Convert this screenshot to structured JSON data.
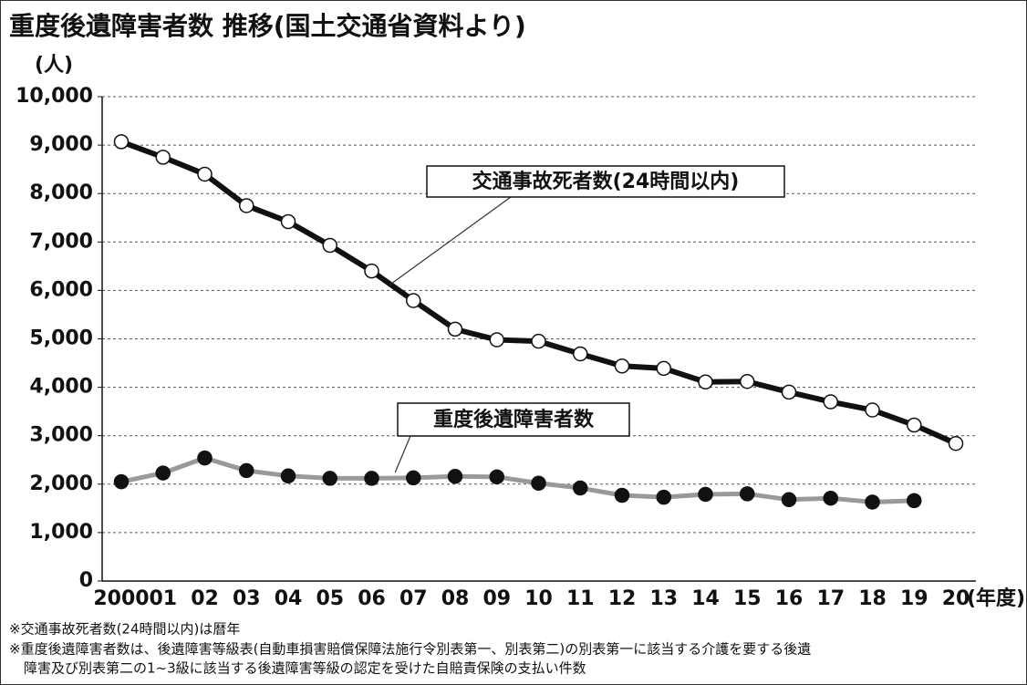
{
  "chart_data": {
    "type": "line",
    "title": "重度後遺障害者数 推移(国土交通省資料より)",
    "y_unit": "(人)",
    "x_unit": "(年度)",
    "categories": [
      "2000",
      "01",
      "02",
      "03",
      "04",
      "05",
      "06",
      "07",
      "08",
      "09",
      "10",
      "11",
      "12",
      "13",
      "14",
      "15",
      "16",
      "17",
      "18",
      "19",
      "20"
    ],
    "series": [
      {
        "name": "交通事故死者数(24時間以内)",
        "color": "#111111",
        "marker_fill": "#ffffff",
        "values": [
          9070,
          8750,
          8400,
          7750,
          7420,
          6930,
          6400,
          5790,
          5200,
          4980,
          4950,
          4690,
          4440,
          4390,
          4110,
          4120,
          3900,
          3700,
          3530,
          3220,
          2840
        ]
      },
      {
        "name": "重度後遺障害者数",
        "color": "#999999",
        "marker_fill": "#111111",
        "values": [
          2050,
          2230,
          2540,
          2280,
          2170,
          2120,
          2120,
          2130,
          2160,
          2150,
          2020,
          1920,
          1770,
          1730,
          1790,
          1800,
          1680,
          1710,
          1630,
          1660,
          null
        ]
      }
    ],
    "ylim": [
      0,
      10000
    ],
    "yticks": [
      0,
      {
        "value": 1000,
        "label": "1,000"
      },
      {
        "value": 2000,
        "label": "2,000"
      },
      {
        "value": 3000,
        "label": "3,000"
      },
      {
        "value": 4000,
        "label": "4,000"
      },
      {
        "value": 5000,
        "label": "5,000"
      },
      {
        "value": 6000,
        "label": "6,000"
      },
      {
        "value": 7000,
        "label": "7,000"
      },
      {
        "value": 8000,
        "label": "8,000"
      },
      {
        "value": 9000,
        "label": "9,000"
      },
      {
        "value": 10000,
        "label": "10,000"
      }
    ],
    "grid": true,
    "notes": [
      "※交通事故死者数(24時間以内)は暦年",
      "※重度後遺障害者数は、後遺障害等級表(自動車損害賠償保障法施行令別表第一、別表第二)の別表第一に該当する介護を要する後遺",
      "障害及び別表第二の1~3級に該当する後遺障害等級の認定を受けた自賠責保険の支払い件数"
    ]
  }
}
